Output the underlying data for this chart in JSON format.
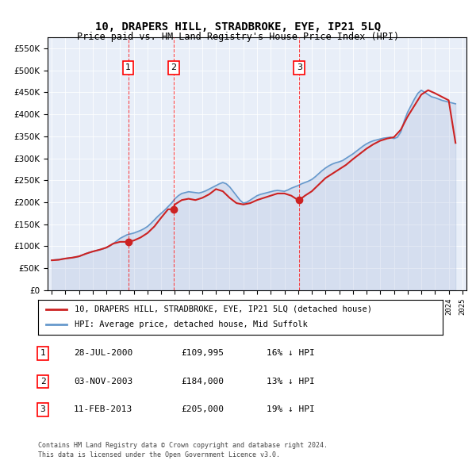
{
  "title": "10, DRAPERS HILL, STRADBROKE, EYE, IP21 5LQ",
  "subtitle": "Price paid vs. HM Land Registry's House Price Index (HPI)",
  "background_color": "#f0f4ff",
  "plot_bg_color": "#e8eef8",
  "ylim": [
    0,
    575000
  ],
  "yticks": [
    0,
    50000,
    100000,
    150000,
    200000,
    250000,
    300000,
    350000,
    400000,
    450000,
    500000,
    550000
  ],
  "legend_label_red": "10, DRAPERS HILL, STRADBROKE, EYE, IP21 5LQ (detached house)",
  "legend_label_blue": "HPI: Average price, detached house, Mid Suffolk",
  "sale_dates": [
    "2000-07-28",
    "2003-11-03",
    "2013-02-11"
  ],
  "sale_prices": [
    109995,
    184000,
    205000
  ],
  "sale_labels": [
    "1",
    "2",
    "3"
  ],
  "footnote1": "Contains HM Land Registry data © Crown copyright and database right 2024.",
  "footnote2": "This data is licensed under the Open Government Licence v3.0.",
  "table_rows": [
    {
      "num": "1",
      "date": "28-JUL-2000",
      "price": "£109,995",
      "change": "16% ↓ HPI"
    },
    {
      "num": "2",
      "date": "03-NOV-2003",
      "price": "£184,000",
      "change": "13% ↓ HPI"
    },
    {
      "num": "3",
      "date": "11-FEB-2013",
      "price": "£205,000",
      "change": "19% ↓ HPI"
    }
  ],
  "hpi_dates": [
    1995.0,
    1995.25,
    1995.5,
    1995.75,
    1996.0,
    1996.25,
    1996.5,
    1996.75,
    1997.0,
    1997.25,
    1997.5,
    1997.75,
    1998.0,
    1998.25,
    1998.5,
    1998.75,
    1999.0,
    1999.25,
    1999.5,
    1999.75,
    2000.0,
    2000.25,
    2000.5,
    2000.75,
    2001.0,
    2001.25,
    2001.5,
    2001.75,
    2002.0,
    2002.25,
    2002.5,
    2002.75,
    2003.0,
    2003.25,
    2003.5,
    2003.75,
    2004.0,
    2004.25,
    2004.5,
    2004.75,
    2005.0,
    2005.25,
    2005.5,
    2005.75,
    2006.0,
    2006.25,
    2006.5,
    2006.75,
    2007.0,
    2007.25,
    2007.5,
    2007.75,
    2008.0,
    2008.25,
    2008.5,
    2008.75,
    2009.0,
    2009.25,
    2009.5,
    2009.75,
    2010.0,
    2010.25,
    2010.5,
    2010.75,
    2011.0,
    2011.25,
    2011.5,
    2011.75,
    2012.0,
    2012.25,
    2012.5,
    2012.75,
    2013.0,
    2013.25,
    2013.5,
    2013.75,
    2014.0,
    2014.25,
    2014.5,
    2014.75,
    2015.0,
    2015.25,
    2015.5,
    2015.75,
    2016.0,
    2016.25,
    2016.5,
    2016.75,
    2017.0,
    2017.25,
    2017.5,
    2017.75,
    2018.0,
    2018.25,
    2018.5,
    2018.75,
    2019.0,
    2019.25,
    2019.5,
    2019.75,
    2020.0,
    2020.25,
    2020.5,
    2020.75,
    2021.0,
    2021.25,
    2021.5,
    2021.75,
    2022.0,
    2022.25,
    2022.5,
    2022.75,
    2023.0,
    2023.25,
    2023.5,
    2023.75,
    2024.0,
    2024.25,
    2024.5
  ],
  "hpi_values": [
    68000,
    69000,
    70000,
    71000,
    72000,
    73000,
    74000,
    75000,
    77000,
    80000,
    83000,
    86000,
    88000,
    90000,
    92000,
    94000,
    97000,
    101000,
    106000,
    112000,
    118000,
    122000,
    126000,
    128000,
    130000,
    133000,
    136000,
    140000,
    145000,
    152000,
    160000,
    168000,
    175000,
    182000,
    190000,
    198000,
    208000,
    215000,
    220000,
    222000,
    224000,
    223000,
    222000,
    221000,
    223000,
    226000,
    230000,
    234000,
    238000,
    242000,
    245000,
    242000,
    235000,
    225000,
    215000,
    205000,
    198000,
    200000,
    205000,
    210000,
    215000,
    218000,
    220000,
    222000,
    224000,
    226000,
    227000,
    226000,
    225000,
    228000,
    232000,
    235000,
    238000,
    242000,
    245000,
    248000,
    252000,
    258000,
    265000,
    272000,
    278000,
    283000,
    287000,
    290000,
    292000,
    295000,
    300000,
    305000,
    310000,
    316000,
    322000,
    328000,
    333000,
    337000,
    340000,
    342000,
    344000,
    346000,
    347000,
    348000,
    345000,
    348000,
    360000,
    385000,
    405000,
    420000,
    435000,
    448000,
    455000,
    450000,
    445000,
    440000,
    438000,
    435000,
    432000,
    430000,
    428000,
    426000,
    424000
  ],
  "property_line_dates": [
    1995.0,
    1995.5,
    1996.0,
    1996.5,
    1997.0,
    1997.5,
    1998.0,
    1998.5,
    1999.0,
    1999.5,
    2000.0,
    2000.583,
    2000.583,
    2001.0,
    2001.5,
    2002.0,
    2002.5,
    2003.0,
    2003.5,
    2003.833,
    2003.833,
    2004.0,
    2004.5,
    2005.0,
    2005.5,
    2006.0,
    2006.5,
    2007.0,
    2007.5,
    2008.0,
    2008.5,
    2009.0,
    2009.5,
    2010.0,
    2010.5,
    2011.0,
    2011.5,
    2012.0,
    2012.5,
    2013.0,
    2013.083,
    2013.083,
    2013.5,
    2014.0,
    2014.5,
    2015.0,
    2015.5,
    2016.0,
    2016.5,
    2017.0,
    2017.5,
    2018.0,
    2018.5,
    2019.0,
    2019.5,
    2020.0,
    2020.5,
    2021.0,
    2021.5,
    2022.0,
    2022.5,
    2023.0,
    2023.5,
    2024.0,
    2024.5
  ],
  "property_line_values": [
    68000,
    69000,
    72000,
    74000,
    77000,
    83000,
    88000,
    92000,
    97000,
    106000,
    109995,
    109995,
    109995,
    113000,
    120000,
    130000,
    145000,
    165000,
    184000,
    184000,
    184000,
    195000,
    205000,
    208000,
    205000,
    210000,
    218000,
    230000,
    225000,
    210000,
    198000,
    195000,
    198000,
    205000,
    210000,
    215000,
    220000,
    220000,
    215000,
    205000,
    205000,
    205000,
    215000,
    225000,
    240000,
    255000,
    265000,
    275000,
    285000,
    298000,
    310000,
    322000,
    332000,
    340000,
    345000,
    348000,
    365000,
    395000,
    420000,
    445000,
    455000,
    448000,
    440000,
    432000,
    335000
  ]
}
